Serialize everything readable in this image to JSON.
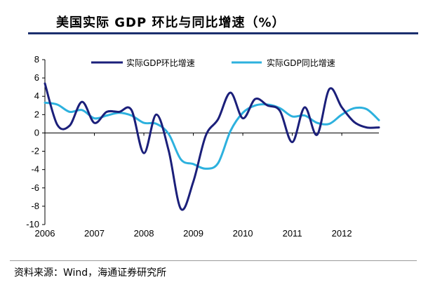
{
  "title": "美国实际 GDP 环比与同比增速（%）",
  "source": "资料来源：Wind，海通证券研究所",
  "chart_data": {
    "type": "line",
    "xlim": [
      2006,
      2012.75
    ],
    "ylim": [
      -10,
      8
    ],
    "yticks": [
      -10,
      -8,
      -6,
      -4,
      -2,
      0,
      2,
      4,
      6,
      8
    ],
    "xticks": [
      2006,
      2007,
      2008,
      2009,
      2010,
      2011,
      2012
    ],
    "x": [
      2006.0,
      2006.25,
      2006.5,
      2006.75,
      2007.0,
      2007.25,
      2007.5,
      2007.75,
      2008.0,
      2008.25,
      2008.5,
      2008.75,
      2009.0,
      2009.25,
      2009.5,
      2009.75,
      2010.0,
      2010.25,
      2010.5,
      2010.75,
      2011.0,
      2011.25,
      2011.5,
      2011.75,
      2012.0,
      2012.25,
      2012.5,
      2012.75
    ],
    "series": [
      {
        "name": "实际GDP环比增速",
        "color": "#1b1f7a",
        "values": [
          5.4,
          0.9,
          0.8,
          3.4,
          1.1,
          2.3,
          2.3,
          2.5,
          -2.2,
          2.0,
          -1.9,
          -8.3,
          -5.3,
          -0.3,
          1.5,
          4.4,
          1.6,
          3.7,
          3.0,
          2.4,
          -1.0,
          2.8,
          -0.2,
          4.8,
          2.8,
          1.2,
          0.6,
          0.6
        ]
      },
      {
        "name": "实际GDP同比增速",
        "color": "#2db1de",
        "values": [
          3.3,
          3.1,
          2.3,
          2.5,
          1.6,
          1.9,
          2.2,
          1.9,
          1.1,
          1.0,
          -0.1,
          -2.9,
          -3.4,
          -3.9,
          -3.3,
          0.2,
          2.2,
          3.0,
          3.1,
          2.7,
          1.8,
          1.9,
          1.1,
          1.0,
          2.0,
          2.7,
          2.6,
          1.4
        ]
      }
    ],
    "legend": "top-right"
  }
}
